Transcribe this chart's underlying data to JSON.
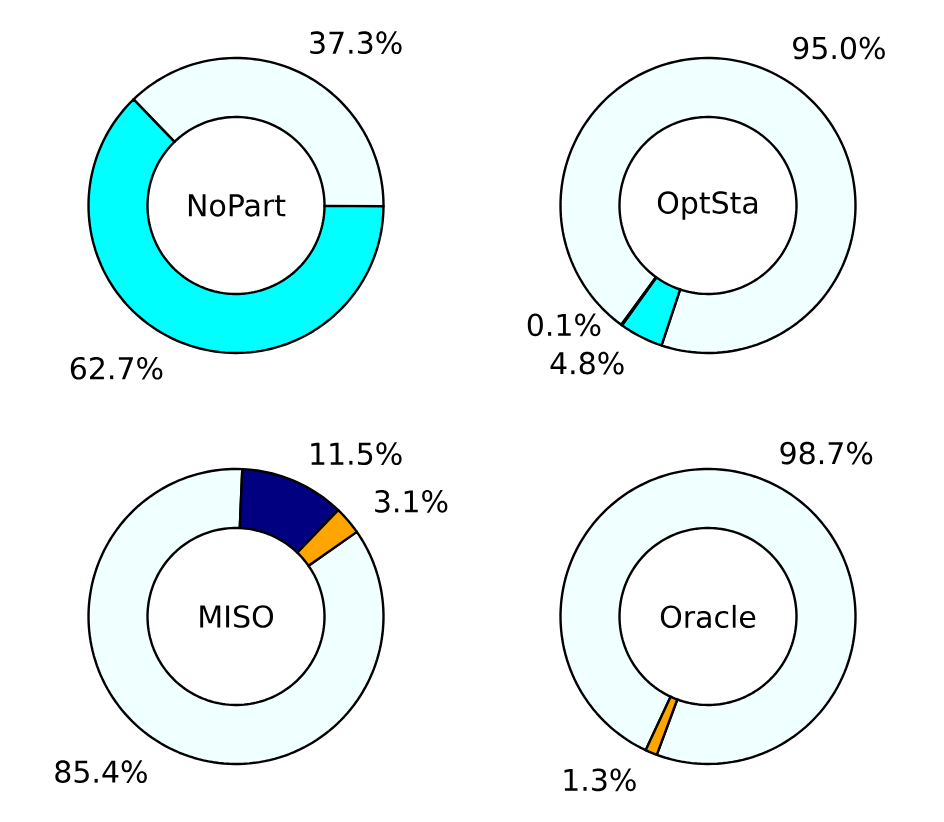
{
  "chart_data": [
    {
      "type": "donut",
      "title": "NoPart",
      "categories": [
        null,
        null
      ],
      "values": [
        37.3,
        62.7
      ],
      "colors": [
        "#f0ffff",
        "#00ffff"
      ],
      "value_labels": [
        "37.3%",
        "62.7%"
      ]
    },
    {
      "type": "donut",
      "title": "OptSta",
      "categories": [
        null,
        null,
        null
      ],
      "values": [
        95.0,
        4.8,
        0.1
      ],
      "colors": [
        "#f0ffff",
        "#00ffff",
        "#000000"
      ],
      "value_labels": [
        "95.0%",
        "4.8%",
        "0.1%"
      ]
    },
    {
      "type": "donut",
      "title": "MISO",
      "categories": [
        null,
        null,
        null
      ],
      "values": [
        85.4,
        11.5,
        3.1
      ],
      "colors": [
        "#f0ffff",
        "#000080",
        "#ffa500"
      ],
      "value_labels": [
        "85.4%",
        "11.5%",
        "3.1%"
      ]
    },
    {
      "type": "donut",
      "title": "Oracle",
      "categories": [
        null,
        null
      ],
      "values": [
        98.7,
        1.3
      ],
      "colors": [
        "#f0ffff",
        "#ffa500"
      ],
      "value_labels": [
        "98.7%",
        "1.3%"
      ]
    }
  ]
}
